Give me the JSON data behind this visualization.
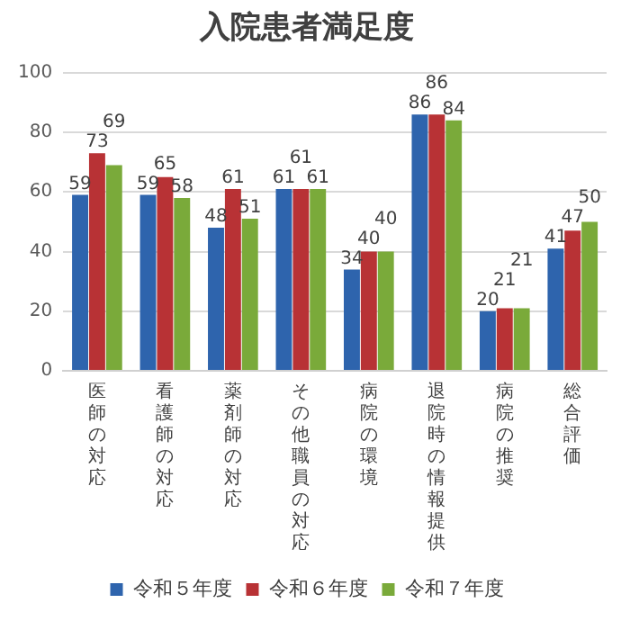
{
  "chart_data": {
    "type": "bar",
    "title": "入院患者満足度",
    "categories": [
      "医師の対応",
      "看護師の対応",
      "薬剤師の対応",
      "その他職員の対応",
      "病院の環境",
      "退院時の情報提供",
      "病院の推奨",
      "総合評価"
    ],
    "series": [
      {
        "name": "令和５年度",
        "color": "#2e64ad",
        "values": [
          59,
          59,
          48,
          61,
          34,
          86,
          20,
          41
        ]
      },
      {
        "name": "令和６年度",
        "color": "#b83235",
        "values": [
          73,
          65,
          61,
          61,
          40,
          86,
          21,
          47
        ]
      },
      {
        "name": "令和７年度",
        "color": "#7aaa3a",
        "values": [
          69,
          58,
          51,
          61,
          40,
          84,
          21,
          50
        ]
      }
    ],
    "ylim": [
      0,
      100
    ],
    "yticks": [
      0,
      20,
      40,
      60,
      80,
      100
    ],
    "grid": "y",
    "legend": "bottom",
    "data_labels": true
  }
}
